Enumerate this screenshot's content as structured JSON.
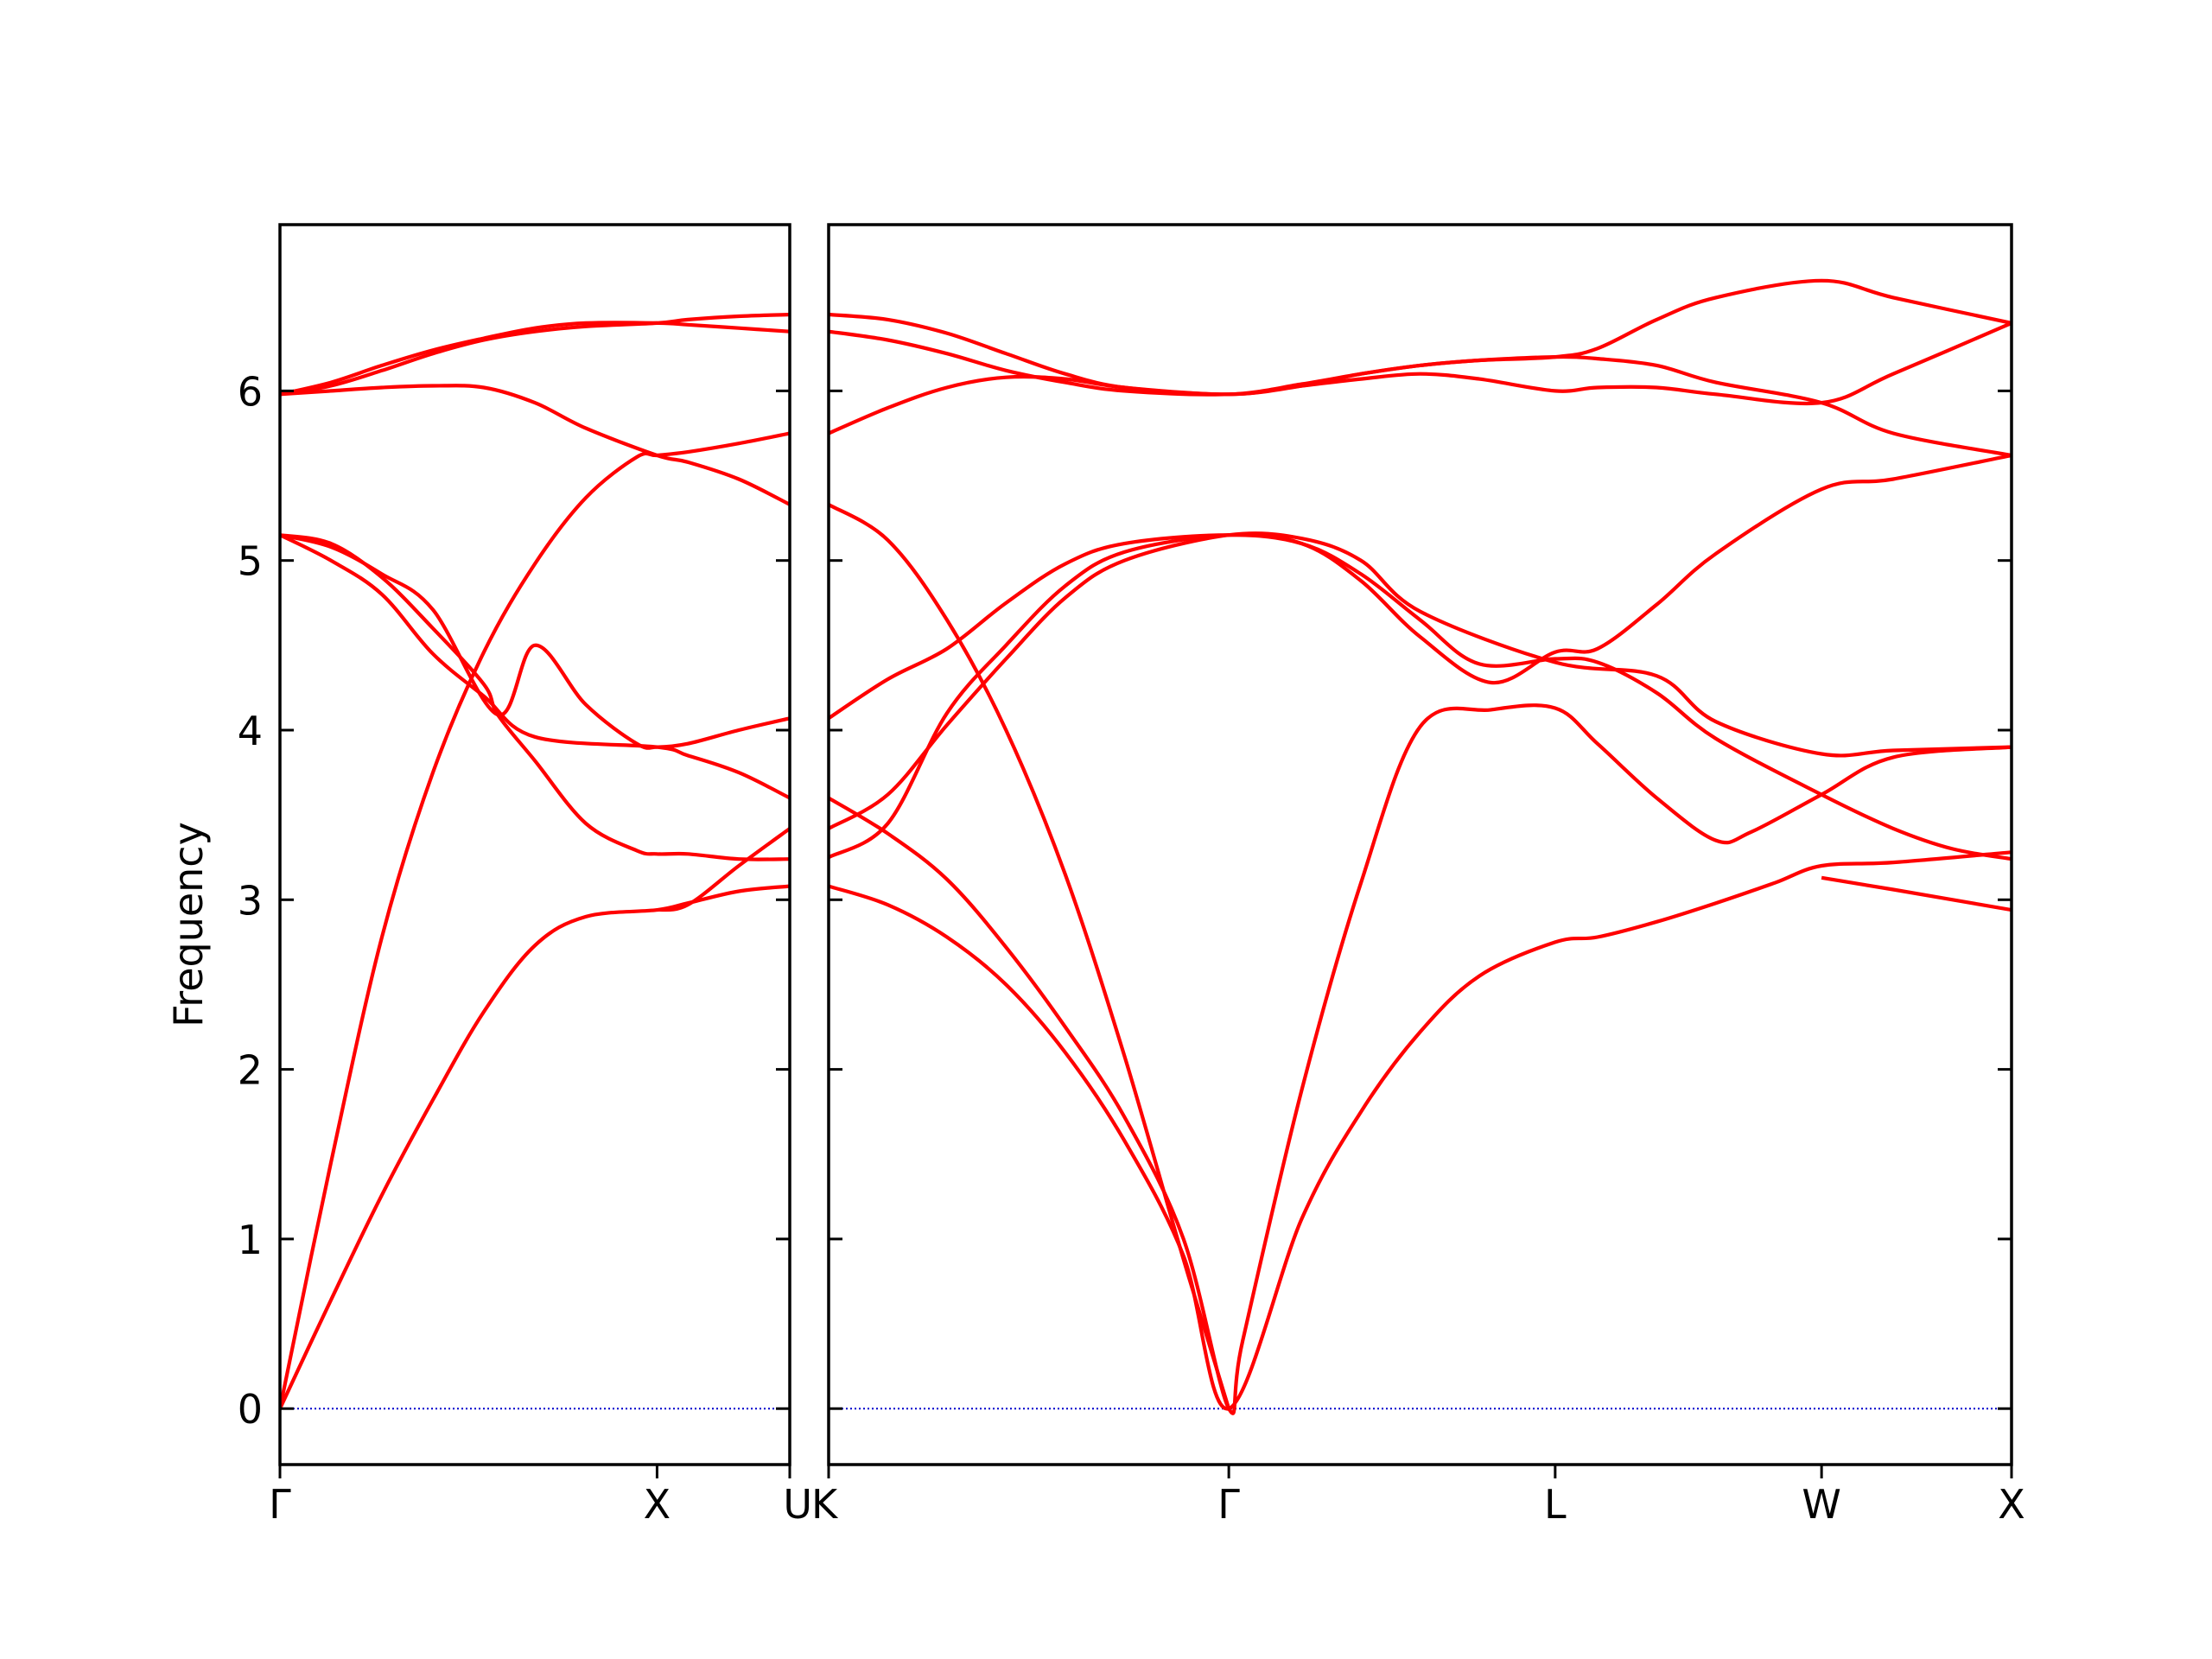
{
  "chart_data": {
    "type": "line",
    "ylabel": "Frequency",
    "ylim": [
      -0.33,
      6.98
    ],
    "yticks": [
      0,
      1,
      2,
      3,
      4,
      5,
      6
    ],
    "zero_line_color": "#0000cc",
    "band_color": "#ff0000",
    "grid": false,
    "panels": [
      {
        "id": "left",
        "path_labels": [
          "Γ",
          "X",
          "U"
        ],
        "label_positions": [
          0,
          0.7397,
          1
        ],
        "bands": [
          [
            [
              0,
              0
            ],
            [
              0.1,
              0.64
            ],
            [
              0.2,
              1.26
            ],
            [
              0.3,
              1.82
            ],
            [
              0.4,
              2.34
            ],
            [
              0.5,
              2.73
            ],
            [
              0.6,
              2.9
            ],
            [
              0.7397,
              2.94
            ],
            [
              0.8,
              2.98
            ],
            [
              0.9,
              3.05
            ],
            [
              1,
              3.08
            ]
          ],
          [
            [
              0,
              0
            ],
            [
              0.1,
              1.45
            ],
            [
              0.2,
              2.78
            ],
            [
              0.3,
              3.75
            ],
            [
              0.4,
              4.46
            ],
            [
              0.5,
              4.98
            ],
            [
              0.6,
              5.37
            ],
            [
              0.7,
              5.61
            ],
            [
              0.7397,
              5.62
            ],
            [
              0.8,
              5.64
            ],
            [
              0.9,
              5.69
            ],
            [
              1,
              5.75
            ]
          ],
          [
            [
              0,
              5.15
            ],
            [
              0.1,
              5.1
            ],
            [
              0.2,
              4.9
            ],
            [
              0.3,
              4.6
            ],
            [
              0.4,
              4.27
            ],
            [
              0.4274,
              4.09
            ],
            [
              0.5,
              3.82
            ],
            [
              0.6,
              3.45
            ],
            [
              0.7,
              3.29
            ],
            [
              0.7397,
              3.27
            ],
            [
              0.8,
              3.27
            ],
            [
              0.9,
              3.24
            ],
            [
              1,
              3.24
            ]
          ],
          [
            [
              0,
              5.15
            ],
            [
              0.1,
              5.08
            ],
            [
              0.2,
              4.92
            ],
            [
              0.3,
              4.71
            ],
            [
              0.4274,
              4.09
            ],
            [
              0.5,
              4.5
            ],
            [
              0.6,
              4.15
            ],
            [
              0.7,
              3.92
            ],
            [
              0.7397,
              3.9
            ],
            [
              0.8,
              3.92
            ],
            [
              0.9,
              4.0
            ],
            [
              1,
              4.07
            ]
          ],
          [
            [
              0,
              5.15
            ],
            [
              0.1,
              5.0
            ],
            [
              0.2,
              4.8
            ],
            [
              0.3,
              4.45
            ],
            [
              0.4,
              4.2
            ],
            [
              0.5,
              3.96
            ],
            [
              0.7397,
              3.9
            ],
            [
              0.8,
              3.85
            ],
            [
              0.9,
              3.75
            ],
            [
              1,
              3.6
            ]
          ],
          [
            [
              0,
              5.98
            ],
            [
              0.1,
              6.0
            ],
            [
              0.2,
              6.02
            ],
            [
              0.3,
              6.03
            ],
            [
              0.4,
              6.02
            ],
            [
              0.5,
              5.93
            ],
            [
              0.6,
              5.78
            ],
            [
              0.7397,
              5.62
            ],
            [
              0.8,
              5.58
            ],
            [
              0.9,
              5.48
            ],
            [
              1,
              5.33
            ]
          ],
          [
            [
              0,
              5.98
            ],
            [
              0.1,
              6.05
            ],
            [
              0.2,
              6.15
            ],
            [
              0.3,
              6.24
            ],
            [
              0.4,
              6.31
            ],
            [
              0.5,
              6.37
            ],
            [
              0.6,
              6.4
            ],
            [
              0.7397,
              6.4
            ],
            [
              0.8,
              6.39
            ],
            [
              0.9,
              6.37
            ],
            [
              1,
              6.35
            ]
          ],
          [
            [
              0,
              5.98
            ],
            [
              0.1,
              6.03
            ],
            [
              0.2,
              6.12
            ],
            [
              0.3,
              6.22
            ],
            [
              0.4,
              6.3
            ],
            [
              0.5,
              6.35
            ],
            [
              0.6,
              6.38
            ],
            [
              0.7397,
              6.4
            ],
            [
              0.8,
              6.42
            ],
            [
              0.9,
              6.44
            ],
            [
              1,
              6.45
            ]
          ],
          [
            [
              0.7397,
              2.94
            ],
            [
              0.8,
              2.97
            ],
            [
              0.9,
              3.2
            ],
            [
              1,
              3.42
            ]
          ]
        ]
      },
      {
        "id": "right",
        "path_labels": [
          "K",
          "Γ",
          "L",
          "W",
          "X"
        ],
        "label_positions": [
          0,
          0.3383,
          0.6142,
          0.8394,
          1
        ],
        "bands": [
          [
            [
              0,
              3.08
            ],
            [
              0.05,
              2.97
            ],
            [
              0.1,
              2.78
            ],
            [
              0.15,
              2.5
            ],
            [
              0.2,
              2.1
            ],
            [
              0.25,
              1.58
            ],
            [
              0.3,
              0.9
            ],
            [
              0.3383,
              0
            ],
            [
              0.4,
              1.12
            ],
            [
              0.45,
              1.75
            ],
            [
              0.5,
              2.22
            ],
            [
              0.55,
              2.55
            ],
            [
              0.6142,
              2.75
            ],
            [
              0.65,
              2.78
            ],
            [
              0.7,
              2.87
            ],
            [
              0.75,
              2.98
            ],
            [
              0.8,
              3.1
            ],
            [
              0.8394,
              3.2
            ],
            [
              0.9,
              3.22
            ],
            [
              1,
              3.28
            ]
          ],
          [
            [
              0,
              3.6
            ],
            [
              0.05,
              3.39
            ],
            [
              0.1,
              3.12
            ],
            [
              0.15,
              2.72
            ],
            [
              0.2,
              2.25
            ],
            [
              0.25,
              1.72
            ],
            [
              0.3,
              1.0
            ],
            [
              0.3383,
              0
            ],
            [
              0.35,
              0.4
            ],
            [
              0.4,
              1.88
            ],
            [
              0.45,
              3.1
            ],
            [
              0.5,
              4.02
            ],
            [
              0.56,
              4.12
            ],
            [
              0.6142,
              4.13
            ],
            [
              0.65,
              3.92
            ],
            [
              0.7,
              3.6
            ],
            [
              0.75,
              3.35
            ],
            [
              0.78,
              3.4
            ],
            [
              0.8394,
              3.62
            ],
            [
              0.9,
              3.84
            ],
            [
              1,
              3.9
            ]
          ],
          [
            [
              0,
              5.33
            ],
            [
              0.05,
              5.12
            ],
            [
              0.1,
              4.65
            ],
            [
              0.15,
              4.0
            ],
            [
              0.2,
              3.15
            ],
            [
              0.25,
              2.08
            ],
            [
              0.3,
              0.88
            ],
            [
              0.3383,
              0
            ]
          ],
          [
            [
              0,
              4.07
            ],
            [
              0.05,
              4.3
            ],
            [
              0.1,
              4.48
            ],
            [
              0.15,
              4.75
            ],
            [
              0.2,
              4.98
            ],
            [
              0.25,
              5.1
            ],
            [
              0.3383,
              5.15
            ],
            [
              0.4,
              5.1
            ],
            [
              0.45,
              4.92
            ],
            [
              0.5,
              4.65
            ],
            [
              0.55,
              4.39
            ],
            [
              0.6142,
              4.42
            ],
            [
              0.65,
              4.4
            ],
            [
              0.7,
              4.22
            ],
            [
              0.75,
              3.95
            ],
            [
              0.8394,
              3.62
            ],
            [
              0.9,
              3.42
            ],
            [
              0.95,
              3.3
            ],
            [
              1,
              3.24
            ]
          ],
          [
            [
              0,
              3.25
            ],
            [
              0.05,
              3.45
            ],
            [
              0.1,
              4.1
            ],
            [
              0.15,
              4.5
            ],
            [
              0.2,
              4.85
            ],
            [
              0.25,
              5.05
            ],
            [
              0.3383,
              5.15
            ],
            [
              0.4,
              5.1
            ],
            [
              0.45,
              4.88
            ],
            [
              0.5,
              4.55
            ],
            [
              0.56,
              4.28
            ],
            [
              0.6142,
              4.46
            ],
            [
              0.65,
              4.48
            ],
            [
              0.7,
              4.74
            ],
            [
              0.75,
              5.04
            ],
            [
              0.8394,
              5.42
            ],
            [
              0.9,
              5.48
            ],
            [
              1,
              5.62
            ]
          ],
          [
            [
              0,
              3.42
            ],
            [
              0.05,
              3.62
            ],
            [
              0.1,
              4.03
            ],
            [
              0.15,
              4.42
            ],
            [
              0.2,
              4.78
            ],
            [
              0.25,
              5.0
            ],
            [
              0.3383,
              5.15
            ],
            [
              0.4,
              5.13
            ],
            [
              0.45,
              5.0
            ],
            [
              0.5,
              4.7
            ],
            [
              0.6142,
              4.4
            ],
            [
              0.7,
              4.32
            ],
            [
              0.75,
              4.05
            ],
            [
              0.8394,
              3.86
            ],
            [
              0.9,
              3.88
            ],
            [
              1,
              3.9
            ]
          ],
          [
            [
              0,
              5.75
            ],
            [
              0.05,
              5.9
            ],
            [
              0.1,
              6.02
            ],
            [
              0.15,
              6.08
            ],
            [
              0.2,
              6.07
            ],
            [
              0.25,
              6.02
            ],
            [
              0.3383,
              5.98
            ],
            [
              0.4,
              6.03
            ],
            [
              0.45,
              6.07
            ],
            [
              0.5,
              6.1
            ],
            [
              0.55,
              6.07
            ],
            [
              0.6142,
              6.0
            ],
            [
              0.65,
              6.02
            ],
            [
              0.7,
              6.02
            ],
            [
              0.75,
              5.98
            ],
            [
              0.8394,
              5.93
            ],
            [
              0.9,
              6.1
            ],
            [
              1,
              6.4
            ]
          ],
          [
            [
              0,
              6.35
            ],
            [
              0.05,
              6.3
            ],
            [
              0.1,
              6.22
            ],
            [
              0.15,
              6.12
            ],
            [
              0.2,
              6.05
            ],
            [
              0.25,
              6.0
            ],
            [
              0.3383,
              5.98
            ],
            [
              0.4,
              6.04
            ],
            [
              0.45,
              6.1
            ],
            [
              0.5,
              6.15
            ],
            [
              0.55,
              6.18
            ],
            [
              0.6142,
              6.2
            ],
            [
              0.65,
              6.19
            ],
            [
              0.7,
              6.15
            ],
            [
              0.75,
              6.05
            ],
            [
              0.8394,
              5.93
            ],
            [
              0.9,
              5.75
            ],
            [
              1,
              5.62
            ]
          ],
          [
            [
              0,
              6.45
            ],
            [
              0.05,
              6.42
            ],
            [
              0.1,
              6.34
            ],
            [
              0.15,
              6.22
            ],
            [
              0.2,
              6.1
            ],
            [
              0.25,
              6.02
            ],
            [
              0.3383,
              5.98
            ],
            [
              0.4,
              6.03
            ],
            [
              0.45,
              6.1
            ],
            [
              0.5,
              6.15
            ],
            [
              0.55,
              6.18
            ],
            [
              0.6142,
              6.2
            ],
            [
              0.65,
              6.25
            ],
            [
              0.7,
              6.42
            ],
            [
              0.75,
              6.55
            ],
            [
              0.8394,
              6.65
            ],
            [
              0.9,
              6.55
            ],
            [
              1,
              6.4
            ]
          ],
          [
            [
              0.8394,
              3.13
            ],
            [
              0.9,
              3.06
            ],
            [
              1,
              2.94
            ]
          ]
        ]
      }
    ]
  }
}
